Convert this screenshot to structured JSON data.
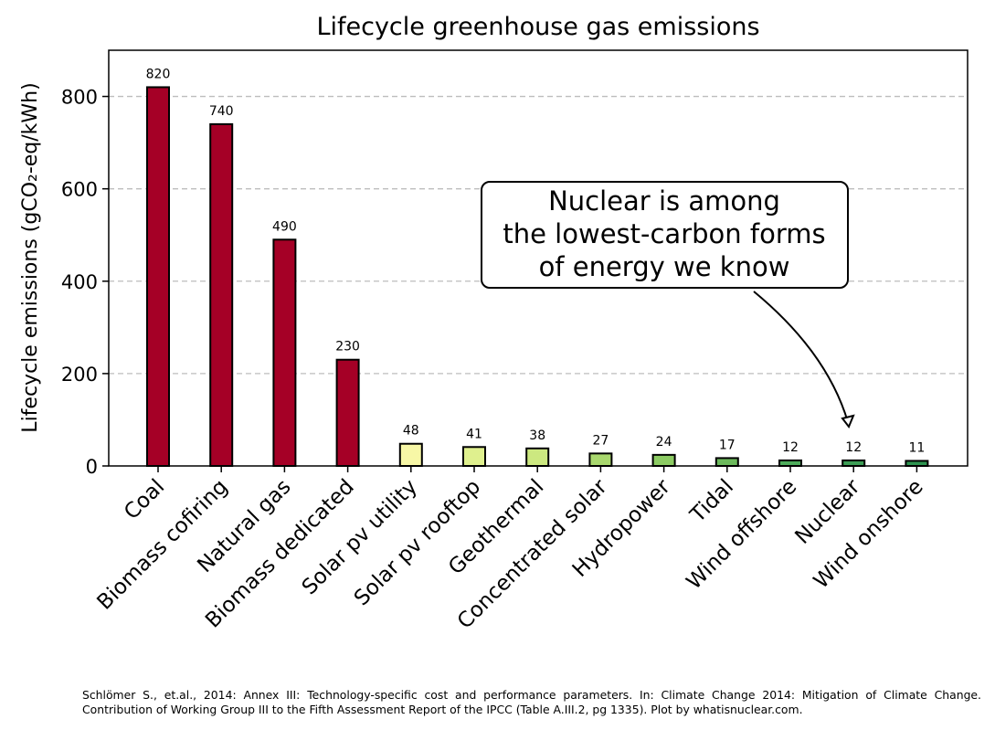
{
  "chart_data": {
    "type": "bar",
    "title": "Lifecycle greenhouse gas emissions",
    "ylabel": "Lifecycle emissions (gCO₂-eq/kWh)",
    "xlabel": "",
    "ylim": [
      0,
      900
    ],
    "yticks": [
      0,
      200,
      400,
      600,
      800
    ],
    "grid": "horizontal-dashed",
    "categories": [
      "Coal",
      "Biomass cofiring",
      "Natural gas",
      "Biomass dedicated",
      "Solar pv utility",
      "Solar pv rooftop",
      "Geothermal",
      "Concentrated solar",
      "Hydropower",
      "Tidal",
      "Wind offshore",
      "Nuclear",
      "Wind onshore"
    ],
    "values": [
      820,
      740,
      490,
      230,
      48,
      41,
      38,
      27,
      24,
      17,
      12,
      12,
      11
    ],
    "data_labels": [
      "820",
      "740",
      "490",
      "230",
      "48",
      "41",
      "38",
      "27",
      "24",
      "17",
      "12",
      "12",
      "11"
    ],
    "colors": [
      "#a50026",
      "#a50026",
      "#a50026",
      "#a50026",
      "#f7f7a6",
      "#dff08e",
      "#cce880",
      "#a9d86e",
      "#8ccb63",
      "#6cb95c",
      "#4eac5b",
      "#3d9e56",
      "#2e9450"
    ],
    "annotation": {
      "lines": [
        "Nuclear is among",
        "the lowest-carbon forms",
        "of energy we know"
      ],
      "target_category": "Nuclear"
    }
  },
  "source_text": "Schlömer S., et.al., 2014: Annex III: Technology-specific cost and performance parameters. In: Climate Change 2014: Mitigation of Climate Change. Contribution of Working Group III to the Fifth Assessment Report of the IPCC (Table A.III.2, pg 1335). Plot by whatisnuclear.com."
}
